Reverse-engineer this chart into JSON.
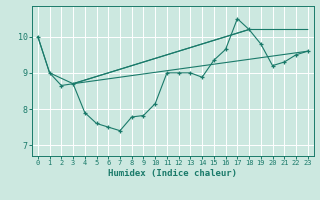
{
  "xlabel": "Humidex (Indice chaleur)",
  "bg_color": "#cce8e0",
  "grid_color": "#ffffff",
  "line_color": "#1a7a6a",
  "xlim": [
    -0.5,
    23.5
  ],
  "ylim": [
    6.7,
    10.85
  ],
  "yticks": [
    7,
    8,
    9,
    10
  ],
  "xticks": [
    0,
    1,
    2,
    3,
    4,
    5,
    6,
    7,
    8,
    9,
    10,
    11,
    12,
    13,
    14,
    15,
    16,
    17,
    18,
    19,
    20,
    21,
    22,
    23
  ],
  "main_x": [
    0,
    1,
    2,
    3,
    4,
    5,
    6,
    7,
    8,
    9,
    10,
    11,
    12,
    13,
    14,
    15,
    16,
    17,
    18,
    19,
    20,
    21,
    22,
    23
  ],
  "main_y": [
    10.0,
    9.0,
    8.65,
    8.7,
    7.9,
    7.6,
    7.5,
    7.4,
    7.78,
    7.82,
    8.15,
    9.0,
    9.0,
    9.0,
    8.88,
    9.35,
    9.65,
    10.5,
    10.2,
    9.8,
    9.2,
    9.3,
    9.5,
    9.6
  ],
  "trend1_x": [
    3,
    18
  ],
  "trend1_y": [
    8.7,
    10.2
  ],
  "trend2_x": [
    3,
    23
  ],
  "trend2_y": [
    8.7,
    9.6
  ],
  "connect_x": [
    0,
    1,
    3,
    18,
    23
  ],
  "connect_y": [
    10.0,
    9.0,
    8.7,
    10.2,
    10.2
  ]
}
